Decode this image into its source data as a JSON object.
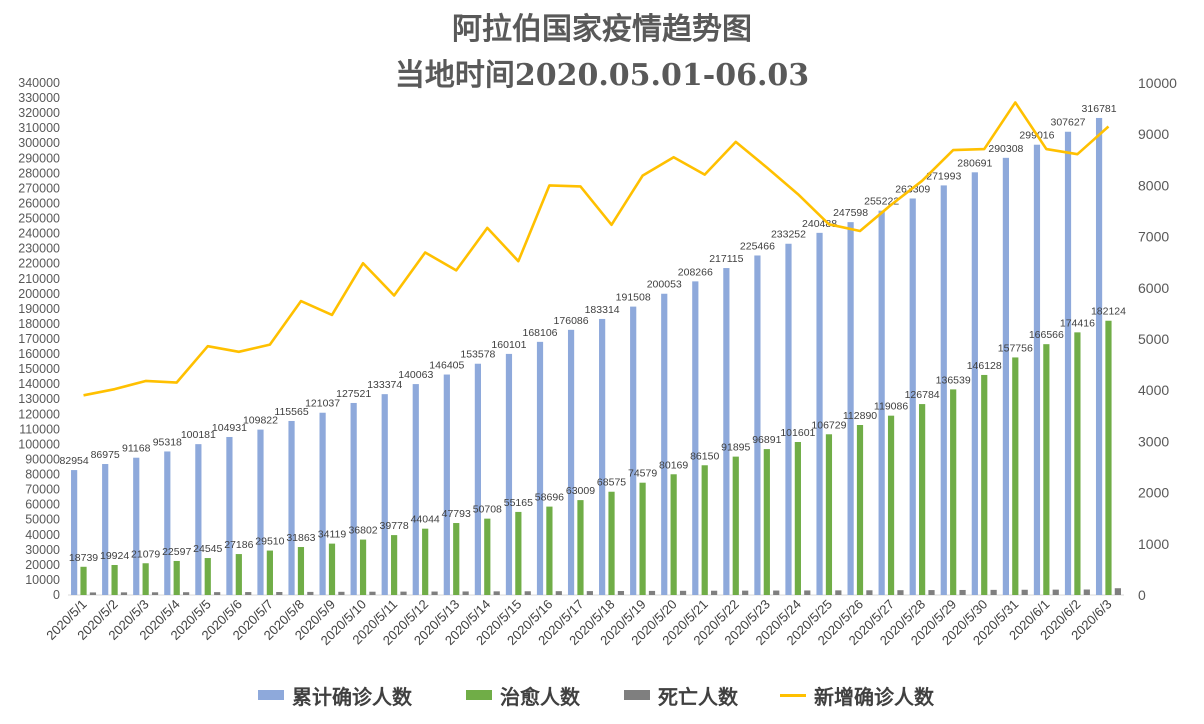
{
  "chart_data": {
    "type": "bar+line",
    "title": "阿拉伯国家疫情趋势图",
    "subtitle": "当地时间2020.05.01-06.03",
    "categories": [
      "2020/5/1",
      "2020/5/2",
      "2020/5/3",
      "2020/5/4",
      "2020/5/5",
      "2020/5/6",
      "2020/5/7",
      "2020/5/8",
      "2020/5/9",
      "2020/5/10",
      "2020/5/11",
      "2020/5/12",
      "2020/5/13",
      "2020/5/14",
      "2020/5/15",
      "2020/5/16",
      "2020/5/17",
      "2020/5/18",
      "2020/5/19",
      "2020/5/20",
      "2020/5/21",
      "2020/5/22",
      "2020/5/23",
      "2020/5/24",
      "2020/5/25",
      "2020/5/26",
      "2020/5/27",
      "2020/5/28",
      "2020/5/29",
      "2020/5/30",
      "2020/5/31",
      "2020/6/1",
      "2020/6/2",
      "2020/6/3"
    ],
    "ylim": [
      0,
      340000
    ],
    "y_ticks": [
      0,
      10000,
      20000,
      30000,
      40000,
      50000,
      60000,
      70000,
      80000,
      90000,
      100000,
      110000,
      120000,
      130000,
      140000,
      150000,
      160000,
      170000,
      180000,
      190000,
      200000,
      210000,
      220000,
      230000,
      240000,
      250000,
      260000,
      270000,
      280000,
      290000,
      300000,
      310000,
      320000,
      330000,
      340000
    ],
    "y2lim": [
      0,
      10000
    ],
    "y2_ticks": [
      0,
      1000,
      2000,
      3000,
      4000,
      5000,
      6000,
      7000,
      8000,
      9000,
      10000
    ],
    "series": [
      {
        "name": "累计确诊人数",
        "type": "bar",
        "axis": "left",
        "color": "#8EA9DB",
        "show_labels": true,
        "values": [
          82954,
          86975,
          91168,
          95318,
          100181,
          104931,
          109822,
          115565,
          121037,
          127521,
          133374,
          140063,
          146405,
          153578,
          160101,
          168106,
          176086,
          183314,
          191508,
          200053,
          208266,
          217115,
          225466,
          233252,
          240488,
          247598,
          255222,
          263309,
          271993,
          280691,
          290308,
          299016,
          307627,
          316781
        ]
      },
      {
        "name": "治愈人数",
        "type": "bar",
        "axis": "left",
        "color": "#70AD47",
        "show_labels": true,
        "values": [
          18739,
          19924,
          21079,
          22597,
          24545,
          27186,
          29510,
          31863,
          34119,
          36802,
          39778,
          44044,
          47793,
          50708,
          55165,
          58696,
          63009,
          68575,
          74579,
          80169,
          86150,
          91895,
          96891,
          101601,
          106729,
          112890,
          119086,
          126784,
          136539,
          146128,
          157756,
          166566,
          174416,
          182124
        ]
      },
      {
        "name": "死亡人数",
        "type": "bar",
        "axis": "left",
        "color": "#7F7F7F",
        "show_labels": false,
        "values": [
          1700,
          1760,
          1800,
          1850,
          1900,
          1960,
          2000,
          2060,
          2120,
          2180,
          2240,
          2300,
          2360,
          2420,
          2480,
          2540,
          2600,
          2660,
          2720,
          2780,
          2840,
          2900,
          2960,
          3020,
          3080,
          3140,
          3200,
          3270,
          3340,
          3410,
          3480,
          3560,
          3640,
          4500
        ]
      },
      {
        "name": "新增确诊人数",
        "type": "line",
        "axis": "right",
        "color": "#FFC000",
        "show_labels": false,
        "values": [
          3900,
          4020,
          4180,
          4150,
          4860,
          4750,
          4890,
          5740,
          5470,
          6480,
          5850,
          6690,
          6340,
          7170,
          6520,
          8000,
          7980,
          7230,
          8190,
          8550,
          8210,
          8850,
          8350,
          7830,
          7240,
          7110,
          7620,
          8090,
          8690,
          8710,
          9620,
          8710,
          8610,
          9150
        ]
      }
    ],
    "legend_position": "bottom",
    "grid": false
  }
}
